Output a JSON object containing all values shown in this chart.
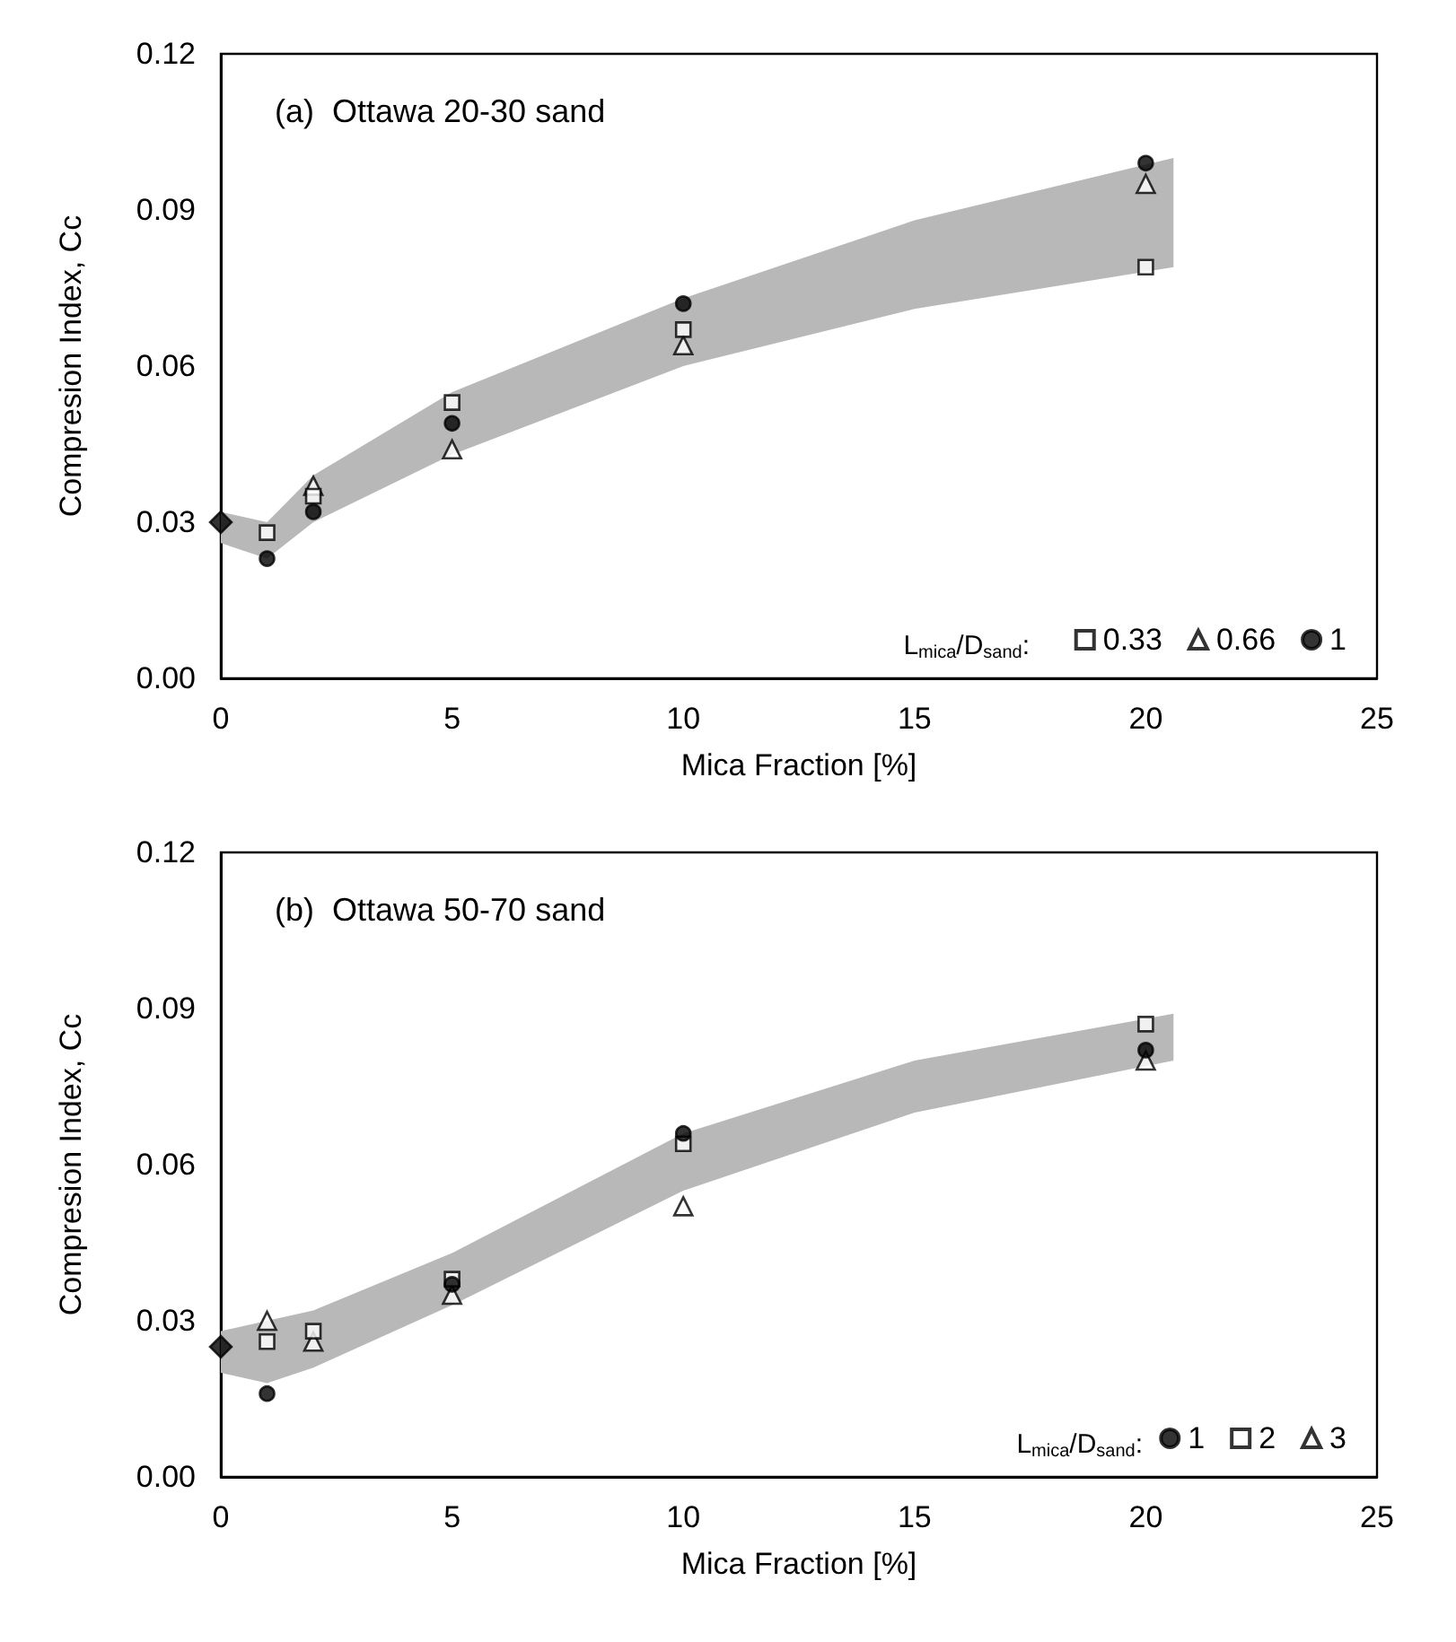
{
  "chart_data": [
    {
      "type": "scatter",
      "title": "(a)  Ottawa 20-30 sand",
      "xlabel": "Mica Fraction [%]",
      "ylabel": "Compresion Index, Cc",
      "legend_title": "L$_{mica}$/D$_{sand}$:",
      "legend": "bottom right",
      "grid": false,
      "xlim": [
        0,
        25
      ],
      "xticks": [
        0,
        5,
        10,
        15,
        20,
        25
      ],
      "ylim": [
        0,
        0.12
      ],
      "yticks": [
        {
          "value": 0,
          "label": "0.00"
        },
        0.03,
        0.06,
        0.09,
        0.12
      ],
      "series": [
        {
          "type": "area",
          "color": "#b8b8b8",
          "x": [
            0,
            1,
            2,
            5,
            10,
            15,
            20.6
          ],
          "values": [
            null,
            null,
            null,
            null,
            null,
            null,
            null
          ],
          "lower": [
            0.026,
            0.023,
            0.03,
            0.043,
            0.06,
            0.071,
            0.079
          ],
          "upper": [
            0.032,
            0.03,
            0.039,
            0.055,
            0.073,
            0.088,
            0.1
          ]
        },
        {
          "color": "#000000",
          "marker": "diamond",
          "x": [
            0
          ],
          "values": [
            0.03
          ]
        },
        {
          "name": "0.33",
          "color": "#000000",
          "marker": "square",
          "x": [
            1,
            2,
            5,
            10,
            20
          ],
          "values": [
            0.028,
            0.035,
            0.053,
            0.067,
            0.079
          ]
        },
        {
          "name": "0.66",
          "color": "#000000",
          "marker": "triangle",
          "x": [
            2,
            5,
            10,
            20
          ],
          "values": [
            0.037,
            0.044,
            0.064,
            0.095
          ]
        },
        {
          "name": "1",
          "color": "#000000",
          "marker": "circle",
          "x": [
            1,
            2,
            5,
            10,
            20
          ],
          "values": [
            0.023,
            0.032,
            0.049,
            0.072,
            0.099
          ]
        }
      ]
    },
    {
      "type": "scatter",
      "title": "(b)  Ottawa 50-70 sand",
      "xlabel": "Mica Fraction [%]",
      "ylabel": "Compresion Index, Cc",
      "legend_title": "L$_{mica}$/D$_{sand}$:",
      "legend": "bottom right",
      "grid": false,
      "xlim": [
        0,
        25
      ],
      "xticks": [
        0,
        5,
        10,
        15,
        20,
        25
      ],
      "ylim": [
        0,
        0.12
      ],
      "yticks": [
        {
          "value": 0,
          "label": "0.00"
        },
        0.03,
        0.06,
        0.09,
        0.12
      ],
      "series": [
        {
          "type": "area",
          "color": "#b8b8b8",
          "x": [
            0,
            1,
            2,
            5,
            10,
            15,
            20.6
          ],
          "values": [
            null,
            null,
            null,
            null,
            null,
            null,
            null
          ],
          "lower": [
            0.02,
            0.018,
            0.021,
            0.033,
            0.055,
            0.07,
            0.08
          ],
          "upper": [
            0.028,
            0.03,
            0.032,
            0.043,
            0.066,
            0.08,
            0.089
          ]
        },
        {
          "color": "#000000",
          "marker": "diamond",
          "x": [
            0
          ],
          "values": [
            0.025
          ]
        },
        {
          "name": "1",
          "color": "#000000",
          "marker": "circle",
          "x": [
            1,
            5,
            10,
            20
          ],
          "values": [
            0.016,
            0.037,
            0.066,
            0.082
          ]
        },
        {
          "name": "2",
          "color": "#000000",
          "marker": "square",
          "x": [
            1,
            2,
            5,
            10,
            20
          ],
          "values": [
            0.026,
            0.028,
            0.038,
            0.064,
            0.087
          ]
        },
        {
          "name": "3",
          "color": "#000000",
          "marker": "triangle",
          "x": [
            1,
            2,
            5,
            10,
            20
          ],
          "values": [
            0.03,
            0.026,
            0.035,
            0.052,
            0.08
          ]
        }
      ]
    }
  ]
}
